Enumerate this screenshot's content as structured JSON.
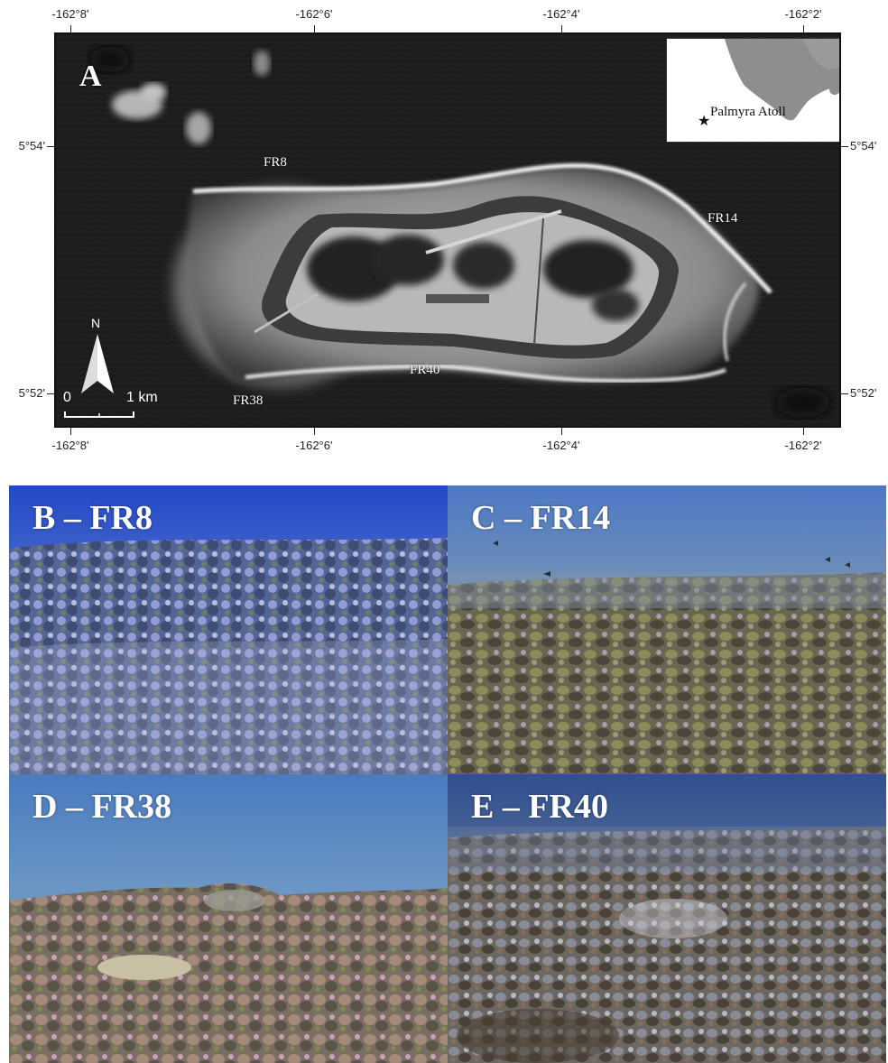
{
  "panel_a": {
    "letter": "A",
    "lon_ticks": [
      "-162°8'",
      "-162°6'",
      "-162°4'",
      "-162°2'"
    ],
    "lat_ticks": [
      "5°54'",
      "5°52'"
    ],
    "site_labels": {
      "fr8": "FR8",
      "fr14": "FR14",
      "fr38": "FR38",
      "fr40": "FR40"
    },
    "inset_label": "Palmyra Atoll",
    "inset_marker": "★",
    "north_label": "N",
    "scale": {
      "start": "0",
      "end": "1 km"
    },
    "colors": {
      "ocean": "#1b1b1b",
      "reef": "#d8d8d8",
      "land": "#3a3a3a",
      "lagoon": "#2a2a2a"
    }
  },
  "photos": [
    {
      "label": "B – FR8",
      "water_color": "#2c4fc4",
      "reef_color": "#6f7fa8"
    },
    {
      "label": "C – FR14",
      "water_color": "#4f79c2",
      "reef_color": "#6e6a58"
    },
    {
      "label": "D – FR38",
      "water_color": "#4a7bb8",
      "reef_color": "#7a7064"
    },
    {
      "label": "E – FR40",
      "water_color": "#33508c",
      "reef_color": "#6b6660"
    }
  ]
}
